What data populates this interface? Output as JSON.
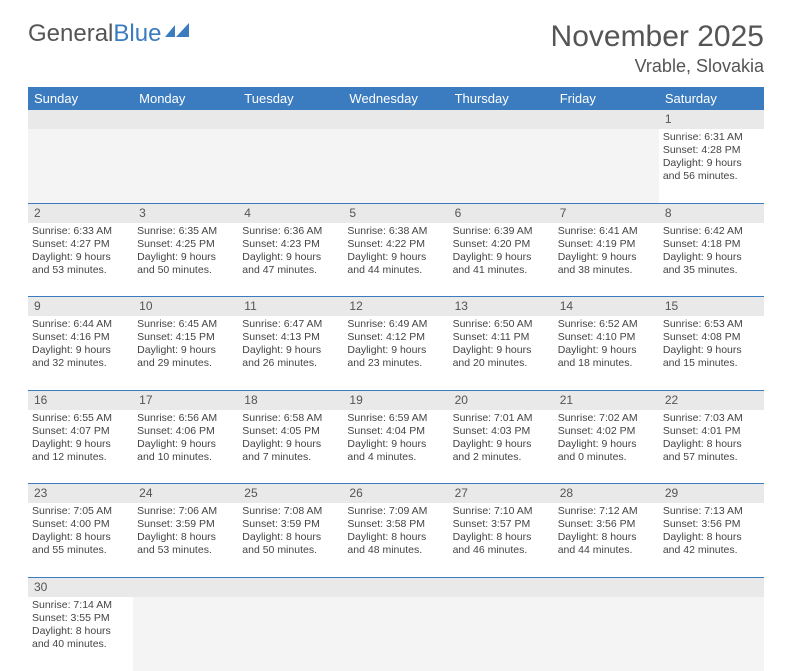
{
  "logo": {
    "part1": "General",
    "part2": "Blue"
  },
  "title": "November 2025",
  "location": "Vrable, Slovakia",
  "colors": {
    "header_bg": "#3b7bbf",
    "header_text": "#ffffff",
    "daynum_bg": "#e9e9e9",
    "border": "#3b7bbf",
    "text": "#444444"
  },
  "weekdays": [
    "Sunday",
    "Monday",
    "Tuesday",
    "Wednesday",
    "Thursday",
    "Friday",
    "Saturday"
  ],
  "weeks": [
    [
      null,
      null,
      null,
      null,
      null,
      null,
      {
        "n": "1",
        "sr": "Sunrise: 6:31 AM",
        "ss": "Sunset: 4:28 PM",
        "d1": "Daylight: 9 hours",
        "d2": "and 56 minutes."
      }
    ],
    [
      {
        "n": "2",
        "sr": "Sunrise: 6:33 AM",
        "ss": "Sunset: 4:27 PM",
        "d1": "Daylight: 9 hours",
        "d2": "and 53 minutes."
      },
      {
        "n": "3",
        "sr": "Sunrise: 6:35 AM",
        "ss": "Sunset: 4:25 PM",
        "d1": "Daylight: 9 hours",
        "d2": "and 50 minutes."
      },
      {
        "n": "4",
        "sr": "Sunrise: 6:36 AM",
        "ss": "Sunset: 4:23 PM",
        "d1": "Daylight: 9 hours",
        "d2": "and 47 minutes."
      },
      {
        "n": "5",
        "sr": "Sunrise: 6:38 AM",
        "ss": "Sunset: 4:22 PM",
        "d1": "Daylight: 9 hours",
        "d2": "and 44 minutes."
      },
      {
        "n": "6",
        "sr": "Sunrise: 6:39 AM",
        "ss": "Sunset: 4:20 PM",
        "d1": "Daylight: 9 hours",
        "d2": "and 41 minutes."
      },
      {
        "n": "7",
        "sr": "Sunrise: 6:41 AM",
        "ss": "Sunset: 4:19 PM",
        "d1": "Daylight: 9 hours",
        "d2": "and 38 minutes."
      },
      {
        "n": "8",
        "sr": "Sunrise: 6:42 AM",
        "ss": "Sunset: 4:18 PM",
        "d1": "Daylight: 9 hours",
        "d2": "and 35 minutes."
      }
    ],
    [
      {
        "n": "9",
        "sr": "Sunrise: 6:44 AM",
        "ss": "Sunset: 4:16 PM",
        "d1": "Daylight: 9 hours",
        "d2": "and 32 minutes."
      },
      {
        "n": "10",
        "sr": "Sunrise: 6:45 AM",
        "ss": "Sunset: 4:15 PM",
        "d1": "Daylight: 9 hours",
        "d2": "and 29 minutes."
      },
      {
        "n": "11",
        "sr": "Sunrise: 6:47 AM",
        "ss": "Sunset: 4:13 PM",
        "d1": "Daylight: 9 hours",
        "d2": "and 26 minutes."
      },
      {
        "n": "12",
        "sr": "Sunrise: 6:49 AM",
        "ss": "Sunset: 4:12 PM",
        "d1": "Daylight: 9 hours",
        "d2": "and 23 minutes."
      },
      {
        "n": "13",
        "sr": "Sunrise: 6:50 AM",
        "ss": "Sunset: 4:11 PM",
        "d1": "Daylight: 9 hours",
        "d2": "and 20 minutes."
      },
      {
        "n": "14",
        "sr": "Sunrise: 6:52 AM",
        "ss": "Sunset: 4:10 PM",
        "d1": "Daylight: 9 hours",
        "d2": "and 18 minutes."
      },
      {
        "n": "15",
        "sr": "Sunrise: 6:53 AM",
        "ss": "Sunset: 4:08 PM",
        "d1": "Daylight: 9 hours",
        "d2": "and 15 minutes."
      }
    ],
    [
      {
        "n": "16",
        "sr": "Sunrise: 6:55 AM",
        "ss": "Sunset: 4:07 PM",
        "d1": "Daylight: 9 hours",
        "d2": "and 12 minutes."
      },
      {
        "n": "17",
        "sr": "Sunrise: 6:56 AM",
        "ss": "Sunset: 4:06 PM",
        "d1": "Daylight: 9 hours",
        "d2": "and 10 minutes."
      },
      {
        "n": "18",
        "sr": "Sunrise: 6:58 AM",
        "ss": "Sunset: 4:05 PM",
        "d1": "Daylight: 9 hours",
        "d2": "and 7 minutes."
      },
      {
        "n": "19",
        "sr": "Sunrise: 6:59 AM",
        "ss": "Sunset: 4:04 PM",
        "d1": "Daylight: 9 hours",
        "d2": "and 4 minutes."
      },
      {
        "n": "20",
        "sr": "Sunrise: 7:01 AM",
        "ss": "Sunset: 4:03 PM",
        "d1": "Daylight: 9 hours",
        "d2": "and 2 minutes."
      },
      {
        "n": "21",
        "sr": "Sunrise: 7:02 AM",
        "ss": "Sunset: 4:02 PM",
        "d1": "Daylight: 9 hours",
        "d2": "and 0 minutes."
      },
      {
        "n": "22",
        "sr": "Sunrise: 7:03 AM",
        "ss": "Sunset: 4:01 PM",
        "d1": "Daylight: 8 hours",
        "d2": "and 57 minutes."
      }
    ],
    [
      {
        "n": "23",
        "sr": "Sunrise: 7:05 AM",
        "ss": "Sunset: 4:00 PM",
        "d1": "Daylight: 8 hours",
        "d2": "and 55 minutes."
      },
      {
        "n": "24",
        "sr": "Sunrise: 7:06 AM",
        "ss": "Sunset: 3:59 PM",
        "d1": "Daylight: 8 hours",
        "d2": "and 53 minutes."
      },
      {
        "n": "25",
        "sr": "Sunrise: 7:08 AM",
        "ss": "Sunset: 3:59 PM",
        "d1": "Daylight: 8 hours",
        "d2": "and 50 minutes."
      },
      {
        "n": "26",
        "sr": "Sunrise: 7:09 AM",
        "ss": "Sunset: 3:58 PM",
        "d1": "Daylight: 8 hours",
        "d2": "and 48 minutes."
      },
      {
        "n": "27",
        "sr": "Sunrise: 7:10 AM",
        "ss": "Sunset: 3:57 PM",
        "d1": "Daylight: 8 hours",
        "d2": "and 46 minutes."
      },
      {
        "n": "28",
        "sr": "Sunrise: 7:12 AM",
        "ss": "Sunset: 3:56 PM",
        "d1": "Daylight: 8 hours",
        "d2": "and 44 minutes."
      },
      {
        "n": "29",
        "sr": "Sunrise: 7:13 AM",
        "ss": "Sunset: 3:56 PM",
        "d1": "Daylight: 8 hours",
        "d2": "and 42 minutes."
      }
    ],
    [
      {
        "n": "30",
        "sr": "Sunrise: 7:14 AM",
        "ss": "Sunset: 3:55 PM",
        "d1": "Daylight: 8 hours",
        "d2": "and 40 minutes."
      },
      null,
      null,
      null,
      null,
      null,
      null
    ]
  ]
}
